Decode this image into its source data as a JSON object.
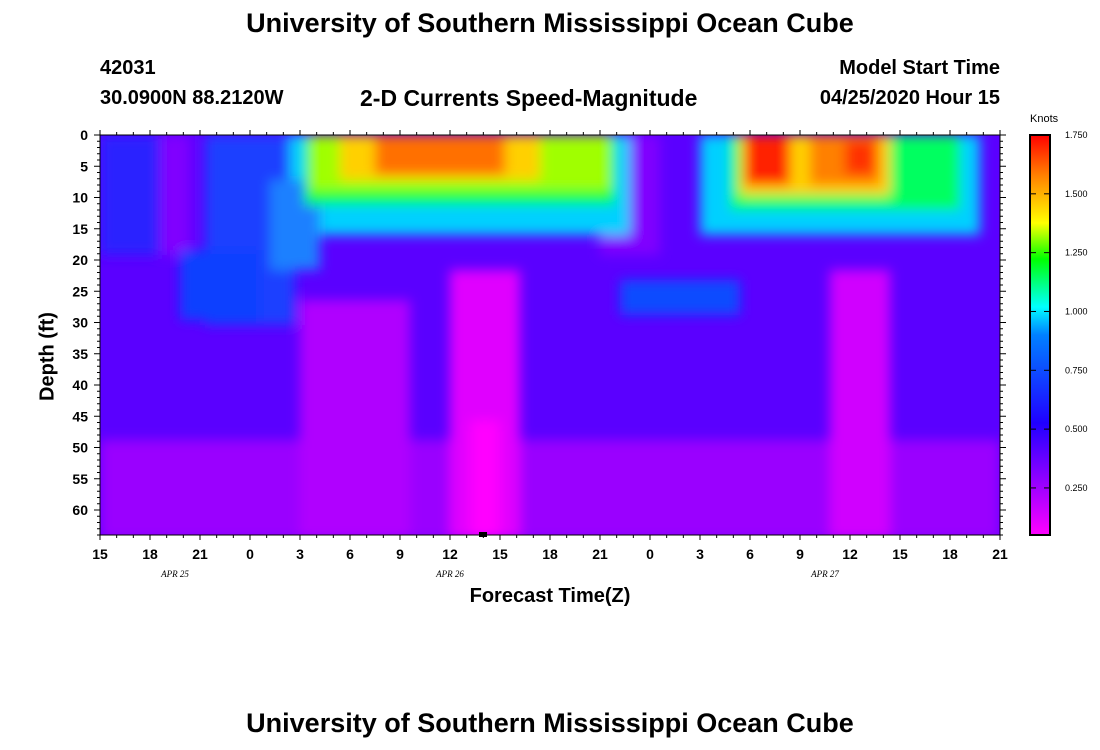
{
  "header": {
    "title": "University of Southern Mississippi Ocean Cube",
    "station_id": "42031",
    "coords": "30.0900N 88.2120W",
    "subtitle": "2-D Currents Speed-Magnitude",
    "model_start_label": "Model Start Time",
    "model_start_value": "04/25/2020 Hour 15"
  },
  "footer": {
    "title": "University of Southern Mississippi Ocean Cube"
  },
  "chart_data": {
    "type": "heatmap",
    "title": "2-D Currents Speed-Magnitude",
    "xlabel": "Forecast Time(Z)",
    "ylabel": "Depth (ft)",
    "x_tick_labels": [
      "15",
      "18",
      "21",
      "0",
      "3",
      "6",
      "9",
      "12",
      "15",
      "18",
      "21",
      "0",
      "3",
      "6",
      "9",
      "12",
      "15",
      "18",
      "21"
    ],
    "x_hours_since_start": [
      0,
      3,
      6,
      9,
      12,
      15,
      18,
      21,
      24,
      27,
      30,
      33,
      36,
      39,
      42,
      45,
      48,
      51,
      54
    ],
    "date_labels": [
      {
        "text": "APR  25",
        "hour": 4.5
      },
      {
        "text": "APR  26",
        "hour": 21
      },
      {
        "text": "APR  27",
        "hour": 43.5
      }
    ],
    "y_tick_labels": [
      "0",
      "5",
      "10",
      "15",
      "20",
      "25",
      "30",
      "35",
      "40",
      "45",
      "50",
      "55",
      "60"
    ],
    "y_values_ft": [
      0,
      5,
      10,
      15,
      20,
      25,
      30,
      35,
      40,
      45,
      50,
      55,
      60
    ],
    "ylim": [
      0,
      64
    ],
    "xlim_hours": [
      0,
      54
    ],
    "colorbar": {
      "title": "Knots",
      "tick_labels": [
        "1.750",
        "1.500",
        "1.250",
        "1.000",
        "0.750",
        "0.500",
        "0.250"
      ],
      "tick_values": [
        1.75,
        1.5,
        1.25,
        1.0,
        0.75,
        0.5,
        0.25
      ],
      "range": [
        0.05,
        1.75
      ],
      "colors": [
        "#ff00ff",
        "#2000ff",
        "#00ffff",
        "#00ff00",
        "#ffff00",
        "#ff8000",
        "#ff0000"
      ]
    },
    "grid": false,
    "speed_profile_summary": [
      {
        "time": "Apr 25 21-23Z",
        "depth_ft": [
          20,
          30
        ],
        "knots": 0.6
      },
      {
        "time": "Apr 26 03-Apr 26 22Z",
        "depth_ft": [
          0,
          15
        ],
        "knots": [
          1.1,
          1.6
        ]
      },
      {
        "time": "Apr 27 03-06Z",
        "depth_ft": [
          23,
          30
        ],
        "knots": 0.55
      },
      {
        "time": "Apr 27 05-07Z",
        "depth_ft": [
          0,
          7
        ],
        "knots": 1.75
      },
      {
        "time": "Apr 27 11-13Z",
        "depth_ft": [
          0,
          8
        ],
        "knots": 1.65
      },
      {
        "time": "Apr 26 14Z",
        "depth_ft": [
          20,
          64
        ],
        "knots": 0.05
      }
    ]
  }
}
